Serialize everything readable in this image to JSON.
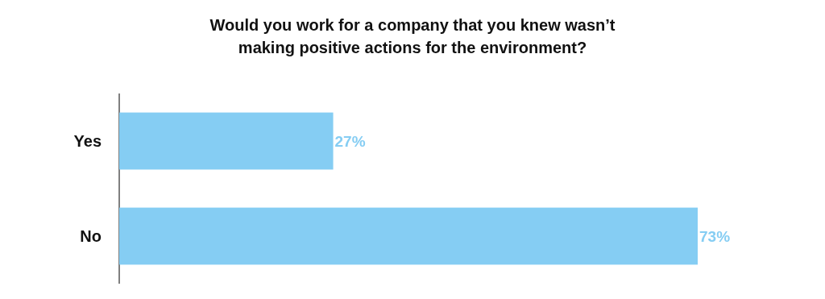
{
  "chart_data": {
    "type": "bar",
    "orientation": "horizontal",
    "title": "Would you work for a company that you knew wasn’t making positive actions for the environment?",
    "categories": [
      "Yes",
      "No"
    ],
    "values": [
      27,
      73
    ],
    "color": "#85cdf3",
    "value_labels": [
      "27%",
      "73%"
    ]
  }
}
